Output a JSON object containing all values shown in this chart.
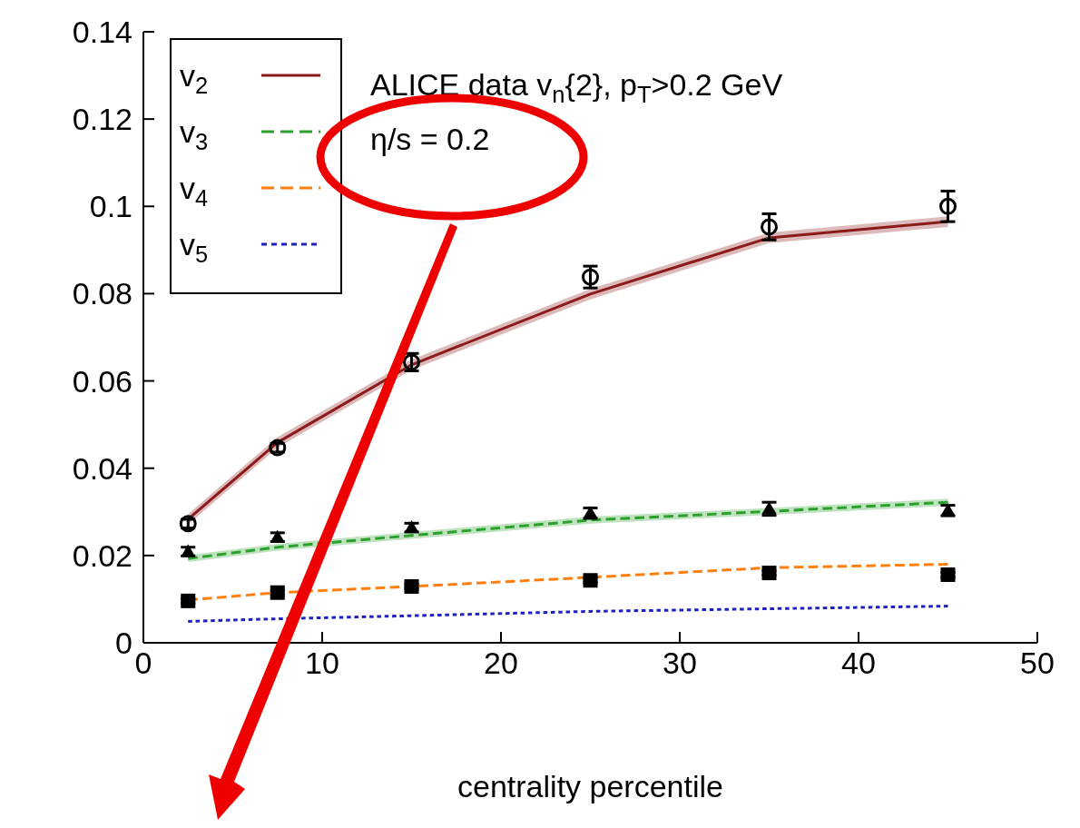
{
  "chart_data": {
    "type": "line",
    "xlabel": "centrality percentile",
    "xlim": [
      0,
      50
    ],
    "xticks": [
      0,
      10,
      20,
      30,
      40,
      50
    ],
    "ylim": [
      0,
      0.14
    ],
    "yticks": [
      0,
      0.02,
      0.04,
      0.06,
      0.08,
      0.1,
      0.12,
      0.14
    ],
    "grid": false,
    "legend": "top left",
    "annotations": [
      "ALICE data v$_{n}${2}, p$_{T}$>0.2 GeV",
      "η/s = 0.2"
    ],
    "series": [
      {
        "name": "v$_{2}$",
        "color": "#8b1a1a",
        "line_style": "solid",
        "x": [
          2.5,
          7.5,
          15,
          25,
          35,
          45
        ],
        "values": [
          0.0283,
          0.0459,
          0.0637,
          0.0799,
          0.0928,
          0.0965
        ],
        "lower": [
          0.0271,
          0.0447,
          0.0625,
          0.0787,
          0.0916,
          0.0953
        ],
        "upper": [
          0.0295,
          0.0471,
          0.0649,
          0.0811,
          0.094,
          0.0977
        ]
      },
      {
        "name": "v$_{3}$",
        "color": "#2ca02c",
        "line_style": "dashed",
        "x": [
          2.5,
          7.5,
          15,
          25,
          35,
          45
        ],
        "values": [
          0.0193,
          0.0219,
          0.0246,
          0.0281,
          0.0301,
          0.0322
        ],
        "lower": [
          0.0185,
          0.0211,
          0.0238,
          0.0273,
          0.0293,
          0.0314
        ],
        "upper": [
          0.0201,
          0.0227,
          0.0254,
          0.0289,
          0.0309,
          0.033
        ]
      },
      {
        "name": "v$_{4}$",
        "color": "#ff7f0e",
        "line_style": "dashed",
        "x": [
          2.5,
          7.5,
          15,
          25,
          35,
          45
        ],
        "values": [
          0.0098,
          0.0115,
          0.0129,
          0.015,
          0.0172,
          0.018
        ]
      },
      {
        "name": "v$_{5}$",
        "color": "#2020c0",
        "line_style": "dotted",
        "x": [
          2.5,
          7.5,
          15,
          25,
          35,
          45
        ],
        "values": [
          0.0049,
          0.0055,
          0.0062,
          0.0072,
          0.0078,
          0.0084
        ]
      },
      {
        "type": "scatter",
        "marker": "circle",
        "color": "#000000",
        "x": [
          2.5,
          7.5,
          15,
          25,
          35,
          45
        ],
        "values": [
          0.0273,
          0.0447,
          0.0643,
          0.0838,
          0.0953,
          0.1
        ],
        "errors": [
          0.001,
          0.001,
          0.002,
          0.0025,
          0.003,
          0.0035
        ]
      },
      {
        "type": "scatter",
        "marker": "triangle",
        "color": "#000000",
        "x": [
          2.5,
          7.5,
          15,
          25,
          35,
          45
        ],
        "values": [
          0.0209,
          0.0242,
          0.0264,
          0.0297,
          0.0307,
          0.0303
        ],
        "errors": [
          0.001,
          0.001,
          0.001,
          0.0012,
          0.0015,
          0.0012
        ]
      },
      {
        "type": "scatter",
        "marker": "square",
        "color": "#000000",
        "x": [
          2.5,
          7.5,
          15,
          25,
          35,
          45
        ],
        "values": [
          0.0096,
          0.0115,
          0.0129,
          0.0143,
          0.016,
          0.0156
        ],
        "errors": [
          0.0005,
          0.0005,
          0.0005,
          0.0005,
          0.0005,
          0.0005
        ]
      }
    ]
  }
}
